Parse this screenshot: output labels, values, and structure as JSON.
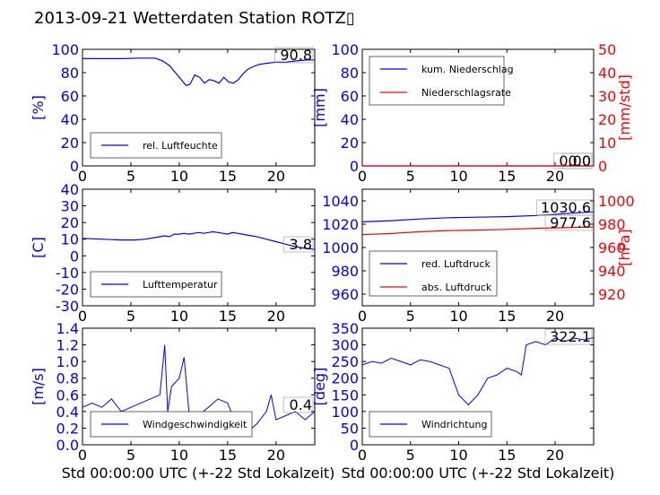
{
  "title": "2013-09-21 Wetterdaten Station ROTZ▯",
  "xlabel": "Std 00:00:00 UTC (+-22 Std Lokalzeit)",
  "colors": {
    "blue": "#0000ff",
    "red": "#ff0000",
    "lightblue": "#8080ff"
  },
  "chart_data": [
    {
      "type": "line",
      "ylabel": "[%]",
      "xlim": [
        0,
        24
      ],
      "ylim": [
        0,
        100
      ],
      "xticks": [
        0,
        5,
        10,
        15,
        20
      ],
      "yticks": [
        0,
        20,
        40,
        60,
        80,
        100
      ],
      "last_value": "90.8",
      "legend_position": "lower-left",
      "series": [
        {
          "name": "rel. Luftfeuchte",
          "color": "#0000ff",
          "x": [
            0,
            2,
            4,
            6,
            7.5,
            8.3,
            9.0,
            9.6,
            10.2,
            10.7,
            11.1,
            11.6,
            12.1,
            12.6,
            13.1,
            13.6,
            14.1,
            14.6,
            15.1,
            15.6,
            16.1,
            16.6,
            17.1,
            17.6,
            18.2,
            19,
            20,
            21,
            22,
            23,
            24
          ],
          "y": [
            92,
            92,
            92,
            92.5,
            92.5,
            90,
            86,
            80,
            74,
            69,
            70,
            78,
            76,
            71,
            74,
            73,
            71,
            76,
            72,
            71,
            74,
            79,
            83,
            85,
            87,
            88,
            89,
            89,
            90,
            90.8,
            91
          ]
        }
      ]
    },
    {
      "type": "line",
      "ylabel": "[mm]",
      "ylabel_right": "[mm/std]",
      "xlim": [
        0,
        24
      ],
      "ylim": [
        0,
        100
      ],
      "ylim_right": [
        0,
        50
      ],
      "xticks": [
        0,
        5,
        10,
        15,
        20
      ],
      "yticks": [
        0,
        20,
        40,
        60,
        80,
        100
      ],
      "yticks_right": [
        0,
        10,
        20,
        30,
        40,
        50
      ],
      "last_value": "0.00",
      "last_value_2": "0.0",
      "legend_position": "upper-left",
      "series": [
        {
          "name": "kum. Niederschlag",
          "color": "#0000ff",
          "x": [
            0,
            24
          ],
          "y": [
            0,
            0
          ]
        },
        {
          "name": "Niederschlagsrate",
          "color": "#ff0000",
          "x": [
            0,
            24
          ],
          "y": [
            0,
            0
          ],
          "axis": "right"
        }
      ]
    },
    {
      "type": "line",
      "ylabel": "[C]",
      "xlim": [
        0,
        24
      ],
      "ylim": [
        -30,
        40
      ],
      "xticks": [
        0,
        5,
        10,
        15,
        20
      ],
      "yticks": [
        -30,
        -20,
        -10,
        0,
        10,
        20,
        30,
        40
      ],
      "last_value": "3.8",
      "legend_position": "lower-left",
      "series": [
        {
          "name": "Lufttemperatur",
          "color": "#0000ff",
          "x": [
            0,
            2,
            4,
            5.5,
            6.5,
            7.5,
            8.5,
            9.0,
            9.5,
            10,
            10.5,
            11,
            11.5,
            12,
            12.5,
            13,
            13.5,
            14,
            14.5,
            15,
            15.5,
            16,
            16.5,
            17,
            18,
            19,
            20,
            21,
            22,
            23,
            24
          ],
          "y": [
            10.5,
            10,
            9.5,
            9.5,
            10,
            11,
            12,
            11.5,
            13,
            13,
            13.5,
            13,
            13.5,
            14,
            13.5,
            14,
            14.5,
            14,
            13.5,
            13,
            14,
            13.5,
            13,
            12.5,
            11.5,
            10,
            8.5,
            7,
            5.5,
            4.5,
            3.8
          ]
        }
      ]
    },
    {
      "type": "line",
      "ylabel_right": "[hPa]",
      "xlim": [
        0,
        24
      ],
      "ylim": [
        950,
        1050
      ],
      "ylim_right": [
        910,
        1010
      ],
      "xticks": [
        0,
        5,
        10,
        15,
        20
      ],
      "yticks": [
        960,
        980,
        1000,
        1020,
        1040
      ],
      "yticks_right": [
        920,
        940,
        960,
        980,
        1000
      ],
      "last_value": "1030.6",
      "last_value_2": "977.6",
      "legend_position": "lower-left",
      "series": [
        {
          "name": "red. Luftdruck",
          "color": "#0000ff",
          "x": [
            0,
            3,
            6,
            9,
            12,
            15,
            18,
            21,
            24
          ],
          "y": [
            1022,
            1023,
            1024.5,
            1025.5,
            1026,
            1026.5,
            1027.5,
            1029,
            1030.6
          ]
        },
        {
          "name": "abs. Luftdruck",
          "color": "#ff0000",
          "axis": "right",
          "x": [
            0,
            3,
            6,
            9,
            12,
            15,
            18,
            21,
            24
          ],
          "y": [
            971,
            972,
            973.5,
            974.5,
            975,
            975.5,
            976.5,
            977,
            977.6
          ]
        }
      ]
    },
    {
      "type": "line",
      "ylabel": "[m/s]",
      "xlim": [
        0,
        24
      ],
      "ylim": [
        0,
        1.4
      ],
      "xticks": [
        0,
        5,
        10,
        15,
        20
      ],
      "yticks": [
        0.0,
        0.2,
        0.4,
        0.6,
        0.8,
        1.0,
        1.2,
        1.4
      ],
      "last_value": "0.4",
      "legend_position": "lower-left",
      "series": [
        {
          "name": "Windgeschwindigkeit",
          "color": "#0000ff",
          "x": [
            0,
            1,
            2,
            3,
            4,
            5,
            6,
            7,
            8,
            8.5,
            8.8,
            9.2,
            10,
            10.5,
            11,
            12,
            13,
            14,
            15,
            16,
            17,
            18,
            19,
            19.5,
            20,
            21,
            22,
            23,
            24
          ],
          "y": [
            0.45,
            0.5,
            0.45,
            0.55,
            0.4,
            0.45,
            0.5,
            0.55,
            0.6,
            1.2,
            0.4,
            0.7,
            0.8,
            1.05,
            0.4,
            0.35,
            0.45,
            0.55,
            0.5,
            0.2,
            0.15,
            0.25,
            0.4,
            0.6,
            0.3,
            0.35,
            0.4,
            0.3,
            0.4
          ]
        }
      ]
    },
    {
      "type": "line",
      "ylabel": "[deg]",
      "xlim": [
        0,
        24
      ],
      "ylim": [
        0,
        350
      ],
      "xticks": [
        0,
        5,
        10,
        15,
        20
      ],
      "yticks": [
        0,
        50,
        100,
        150,
        200,
        250,
        300,
        350
      ],
      "last_value": "322.1",
      "legend_position": "lower-left",
      "series": [
        {
          "name": "Windrichtung",
          "color": "#0000ff",
          "x": [
            0,
            1,
            2,
            3,
            4,
            5,
            6,
            7,
            8,
            9,
            10,
            11,
            12,
            13,
            14,
            15,
            16,
            16.5,
            17,
            18,
            19,
            20,
            21,
            22,
            23,
            24
          ],
          "y": [
            240,
            250,
            245,
            260,
            250,
            240,
            255,
            250,
            240,
            230,
            150,
            120,
            150,
            200,
            210,
            230,
            220,
            210,
            300,
            310,
            300,
            320,
            310,
            320,
            315,
            322
          ]
        }
      ]
    }
  ]
}
